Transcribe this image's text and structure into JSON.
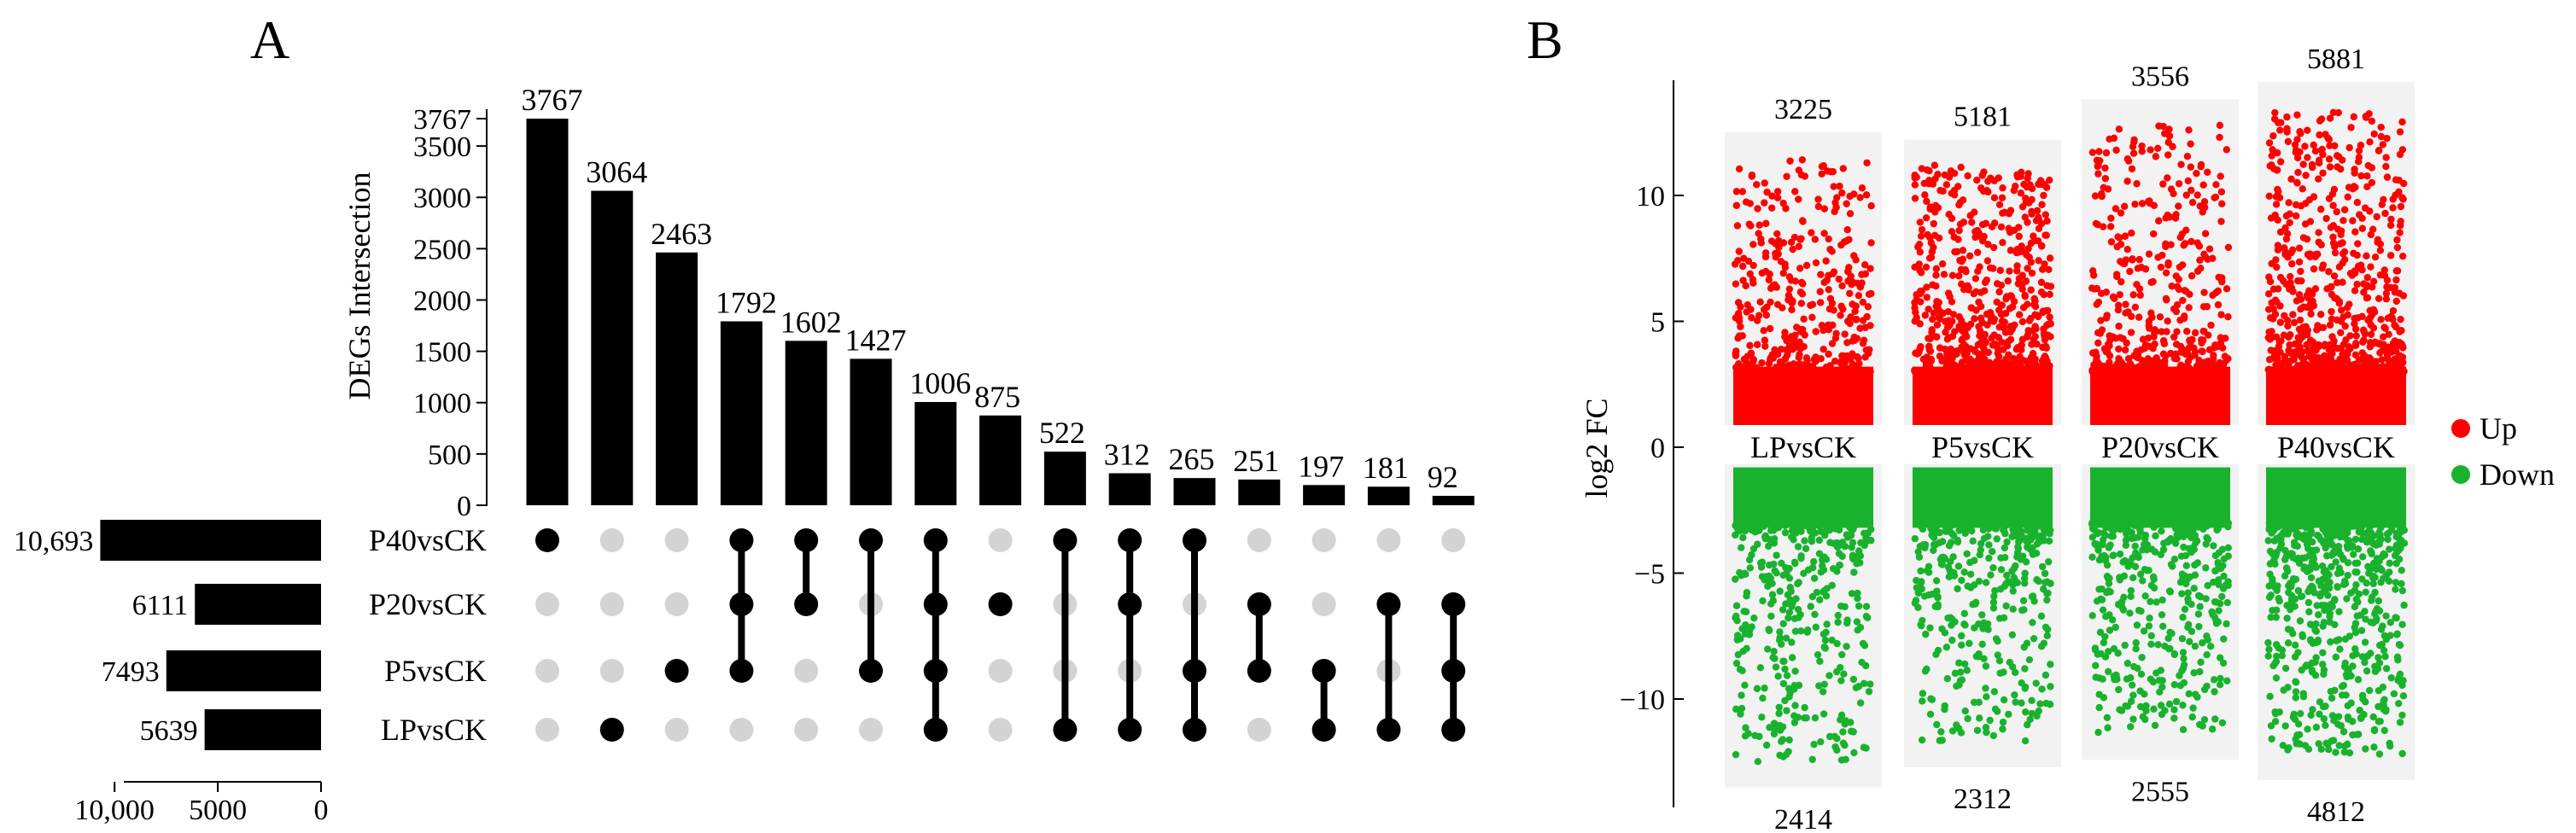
{
  "chart_data": [
    {
      "type": "upset",
      "panel_label": "A",
      "ylabel": "DEGs Intersection",
      "ylim": [
        0,
        3767
      ],
      "y_ticks": [
        0,
        500,
        1000,
        1500,
        2000,
        2500,
        3000,
        3500,
        3767
      ],
      "sets": [
        "P40vsCK",
        "P20vsCK",
        "P5vsCK",
        "LPvsCK"
      ],
      "set_sizes": [
        10693,
        6111,
        7493,
        5639
      ],
      "set_size_labels": [
        "10,693",
        "6111",
        "7493",
        "5639"
      ],
      "set_size_ticks": [
        10000,
        5000,
        0
      ],
      "set_size_tick_labels": [
        "10,000",
        "5000",
        "0"
      ],
      "intersections": [
        {
          "value": 3767,
          "sets": [
            "P40vsCK"
          ]
        },
        {
          "value": 3064,
          "sets": [
            "LPvsCK"
          ]
        },
        {
          "value": 2463,
          "sets": [
            "P5vsCK"
          ]
        },
        {
          "value": 1792,
          "sets": [
            "P40vsCK",
            "P20vsCK",
            "P5vsCK"
          ]
        },
        {
          "value": 1602,
          "sets": [
            "P40vsCK",
            "P20vsCK"
          ]
        },
        {
          "value": 1427,
          "sets": [
            "P40vsCK",
            "P5vsCK"
          ]
        },
        {
          "value": 1006,
          "sets": [
            "P40vsCK",
            "P20vsCK",
            "P5vsCK",
            "LPvsCK"
          ]
        },
        {
          "value": 875,
          "sets": [
            "P20vsCK"
          ]
        },
        {
          "value": 522,
          "sets": [
            "P40vsCK",
            "LPvsCK"
          ]
        },
        {
          "value": 312,
          "sets": [
            "P40vsCK",
            "P20vsCK",
            "LPvsCK"
          ]
        },
        {
          "value": 265,
          "sets": [
            "P40vsCK",
            "P5vsCK",
            "LPvsCK"
          ]
        },
        {
          "value": 251,
          "sets": [
            "P20vsCK",
            "P5vsCK"
          ]
        },
        {
          "value": 197,
          "sets": [
            "P5vsCK",
            "LPvsCK"
          ]
        },
        {
          "value": 181,
          "sets": [
            "P20vsCK",
            "LPvsCK"
          ]
        },
        {
          "value": 92,
          "sets": [
            "P20vsCK",
            "P5vsCK",
            "LPvsCK"
          ]
        }
      ]
    },
    {
      "type": "scatter",
      "panel_label": "B",
      "ylabel": "log2 FC",
      "ylim": [
        -13,
        14
      ],
      "y_ticks": [
        10,
        5,
        0,
        -5,
        -10
      ],
      "y_tick_labels": [
        "10",
        "5",
        "0",
        "−5",
        "−10"
      ],
      "groups": [
        {
          "name": "LPvsCK",
          "up": 3225,
          "down": 2414,
          "up_max": 11.5,
          "down_min": -12.5
        },
        {
          "name": "P5vsCK",
          "up": 5181,
          "down": 2312,
          "up_max": 11.2,
          "down_min": -11.7
        },
        {
          "name": "P20vsCK",
          "up": 3556,
          "down": 2555,
          "up_max": 12.8,
          "down_min": -11.4
        },
        {
          "name": "P40vsCK",
          "up": 5881,
          "down": 4812,
          "up_max": 13.5,
          "down_min": -12.2
        }
      ],
      "legend": [
        {
          "label": "Up",
          "color": "#ff0000"
        },
        {
          "label": "Down",
          "color": "#19b22d"
        }
      ],
      "colors": {
        "up": "#ff0000",
        "down": "#19b22d",
        "band": "#f2f2f2"
      }
    }
  ]
}
